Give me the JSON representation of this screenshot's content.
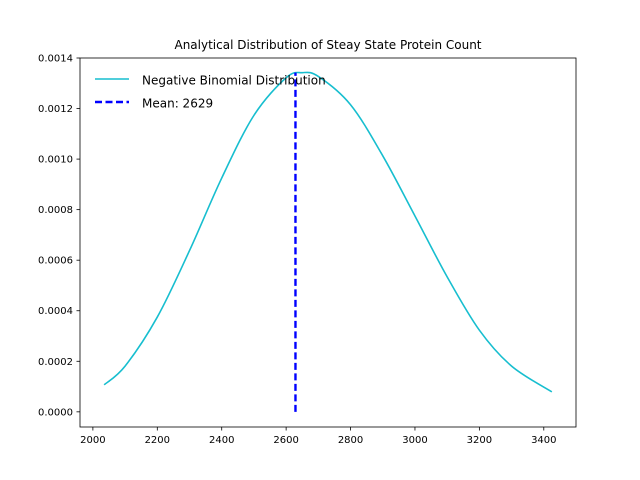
{
  "chart_data": {
    "type": "line",
    "title": "Analytical Distribution of Steay State Protein Count",
    "xlabel": "",
    "ylabel": "",
    "xlim": [
      1960,
      3500
    ],
    "ylim": [
      -6e-05,
      0.0014
    ],
    "xticks": [
      2000,
      2200,
      2400,
      2600,
      2800,
      3000,
      3200,
      3400
    ],
    "xtick_labels": [
      "2000",
      "2200",
      "2400",
      "2600",
      "2800",
      "3000",
      "3200",
      "3400"
    ],
    "yticks": [
      0.0,
      0.0002,
      0.0004,
      0.0006,
      0.0008,
      0.001,
      0.0012,
      0.0014
    ],
    "ytick_labels": [
      "0.0000",
      "0.0002",
      "0.0004",
      "0.0006",
      "0.0008",
      "0.0010",
      "0.0012",
      "0.0014"
    ],
    "grid": false,
    "legend_position": "top-left",
    "series": [
      {
        "name": "Negative Binomial Distribution",
        "style": "solid",
        "color": "#17becf",
        "x": [
          2035,
          2100,
          2200,
          2300,
          2400,
          2500,
          2600,
          2650,
          2700,
          2800,
          2900,
          3000,
          3100,
          3200,
          3300,
          3425
        ],
        "y": [
          0.000107,
          0.000181,
          0.000375,
          0.000638,
          0.000925,
          0.001173,
          0.001322,
          0.001342,
          0.001327,
          0.001215,
          0.001013,
          0.000775,
          0.000534,
          0.000323,
          0.000181,
          7.9e-05
        ]
      },
      {
        "name": "Mean: 2629",
        "style": "dashed",
        "color": "#0000ff",
        "x": [
          2629,
          2629
        ],
        "y": [
          0.0,
          0.001342
        ]
      }
    ]
  }
}
